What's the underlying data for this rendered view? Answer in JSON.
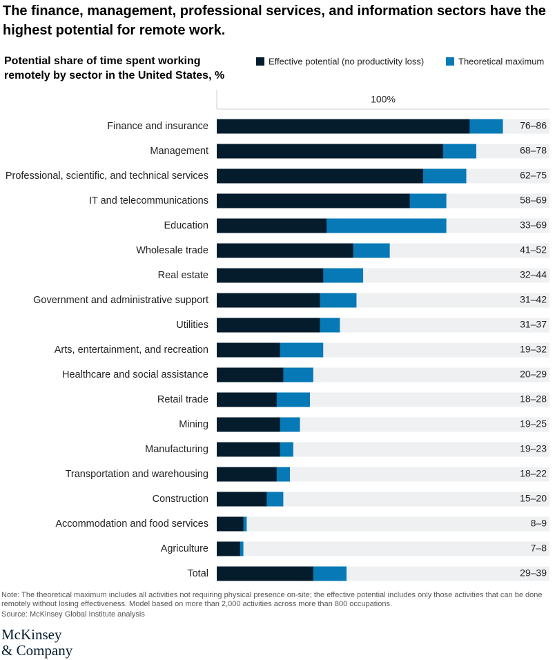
{
  "chart_data": {
    "type": "bar",
    "orientation": "horizontal",
    "title": "The finance, management, professional services, and information sectors have the highest potential for remote work.",
    "subtitle": "Potential share of time spent working remotely by sector in the United States, %",
    "categories": [
      "Finance and insurance",
      "Management",
      "Professional, scientific, and technical services",
      "IT and telecommunications",
      "Education",
      "Wholesale trade",
      "Real estate",
      "Government and administrative support",
      "Utilities",
      "Arts, entertainment, and recreation",
      "Healthcare and social assistance",
      "Retail trade",
      "Mining",
      "Manufacturing",
      "Transportation and warehousing",
      "Construction",
      "Accommodation and food services",
      "Agriculture",
      "Total"
    ],
    "series": [
      {
        "name": "Effective potential (no productivity loss)",
        "color": "#051c2c",
        "values": [
          76,
          68,
          62,
          58,
          33,
          41,
          32,
          31,
          31,
          19,
          20,
          18,
          19,
          19,
          18,
          15,
          8,
          7,
          29
        ]
      },
      {
        "name": "Theoretical maximum",
        "color": "#0679b6",
        "values": [
          86,
          78,
          75,
          69,
          69,
          52,
          44,
          42,
          37,
          32,
          29,
          28,
          25,
          23,
          22,
          20,
          9,
          8,
          39
        ],
        "value_labels": [
          "76–86",
          "68–78",
          "62–75",
          "58–69",
          "33–69",
          "41–52",
          "32–44",
          "31–42",
          "31–37",
          "19–32",
          "20–29",
          "18–28",
          "19–25",
          "19–23",
          "18–22",
          "15–20",
          "8–9",
          "7–8",
          "29–39"
        ]
      }
    ],
    "xlim": [
      0,
      100
    ],
    "xticks": [
      {
        "value": 100,
        "label": "100%"
      }
    ],
    "background_color": "#eef0f2",
    "note": "Note: The theoretical maximum includes all activities not requiring physical presence on-site; the effective potential includes only those activities that can be done remotely without losing effectiveness. Model based on more than 2,000 activities across more than 800 occupations.",
    "source": "Source: McKinsey Global Institute analysis",
    "logo": [
      "McKinsey",
      "& Company"
    ]
  }
}
